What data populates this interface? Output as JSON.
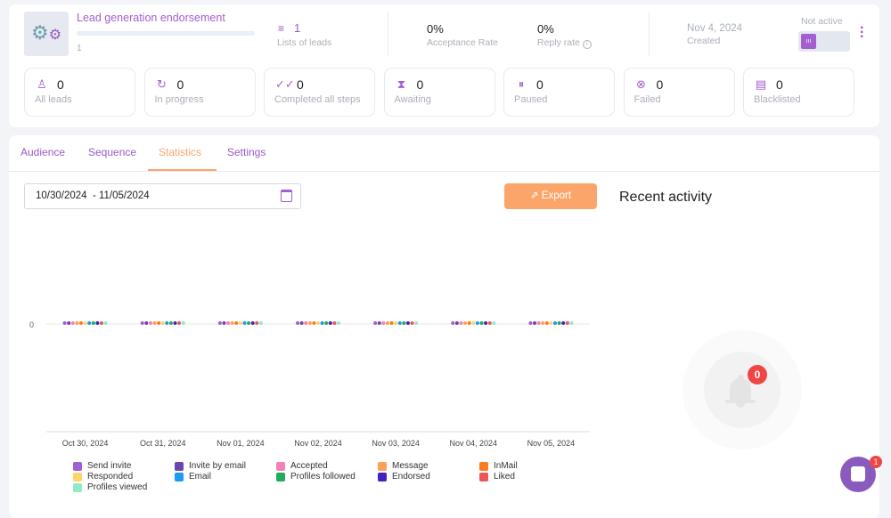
{
  "campaign": {
    "title": "Lead generation endorsement",
    "progress_count": "1",
    "progress": 0,
    "lists_count": "1",
    "lists_label": "Lists of leads",
    "acceptance_value": "0%",
    "acceptance_label": "Acceptance Rate",
    "reply_value": "0%",
    "reply_label": "Reply rate",
    "created_date": "Nov 4, 2024",
    "created_label": "Created",
    "status_label": "Not active",
    "toggle_icon": "pause-icon"
  },
  "stats": [
    {
      "value": "0",
      "label": "All leads",
      "icon": "user-icon"
    },
    {
      "value": "0",
      "label": "In progress",
      "icon": "refresh-icon"
    },
    {
      "value": "0",
      "label": "Completed all steps",
      "icon": "double-check-icon"
    },
    {
      "value": "0",
      "label": "Awaiting",
      "icon": "hourglass-icon"
    },
    {
      "value": "0",
      "label": "Paused",
      "icon": "pause-circle-icon"
    },
    {
      "value": "0",
      "label": "Failed",
      "icon": "x-circle-icon"
    },
    {
      "value": "0",
      "label": "Blacklisted",
      "icon": "blacklist-icon"
    }
  ],
  "tabs": [
    {
      "label": "Audience"
    },
    {
      "label": "Sequence"
    },
    {
      "label": "Statistics",
      "active": true
    },
    {
      "label": "Settings"
    }
  ],
  "date_range": "10/30/2024  - 11/05/2024",
  "export_label": "Export",
  "recent_activity": {
    "title": "Recent activity",
    "badge": "0"
  },
  "chat": {
    "badge": "1"
  },
  "colors": {
    "accent": "#9b59c9",
    "export": "#fba56b",
    "badge": "#f04545"
  },
  "chart_data": {
    "type": "line",
    "categories": [
      "Oct 30, 2024",
      "Oct 31, 2024",
      "Nov 01, 2024",
      "Nov 02, 2024",
      "Nov 03, 2024",
      "Nov 04, 2024",
      "Nov 05, 2024"
    ],
    "yticks": [
      "0"
    ],
    "legend": "bottom",
    "series": [
      {
        "name": "Send invite",
        "color": "#a35ed0",
        "values": [
          0,
          0,
          0,
          0,
          0,
          0,
          0
        ]
      },
      {
        "name": "Invite by email",
        "color": "#6b46b0",
        "values": [
          0,
          0,
          0,
          0,
          0,
          0,
          0
        ]
      },
      {
        "name": "Accepted",
        "color": "#f57fb8",
        "values": [
          0,
          0,
          0,
          0,
          0,
          0,
          0
        ]
      },
      {
        "name": "Message",
        "color": "#fba056",
        "values": [
          0,
          0,
          0,
          0,
          0,
          0,
          0
        ]
      },
      {
        "name": "InMail",
        "color": "#f97c1e",
        "values": [
          0,
          0,
          0,
          0,
          0,
          0,
          0
        ]
      },
      {
        "name": "Responded",
        "color": "#fcd46a",
        "values": [
          0,
          0,
          0,
          0,
          0,
          0,
          0
        ]
      },
      {
        "name": "Email",
        "color": "#1e98f5",
        "values": [
          0,
          0,
          0,
          0,
          0,
          0,
          0
        ]
      },
      {
        "name": "Profiles followed",
        "color": "#22ab5d",
        "values": [
          0,
          0,
          0,
          0,
          0,
          0,
          0
        ]
      },
      {
        "name": "Endorsed",
        "color": "#4422c0",
        "values": [
          0,
          0,
          0,
          0,
          0,
          0,
          0
        ]
      },
      {
        "name": "Liked",
        "color": "#ec5656",
        "values": [
          0,
          0,
          0,
          0,
          0,
          0,
          0
        ]
      },
      {
        "name": "Profiles viewed",
        "color": "#8eedc6",
        "values": [
          0,
          0,
          0,
          0,
          0,
          0,
          0
        ]
      }
    ]
  }
}
